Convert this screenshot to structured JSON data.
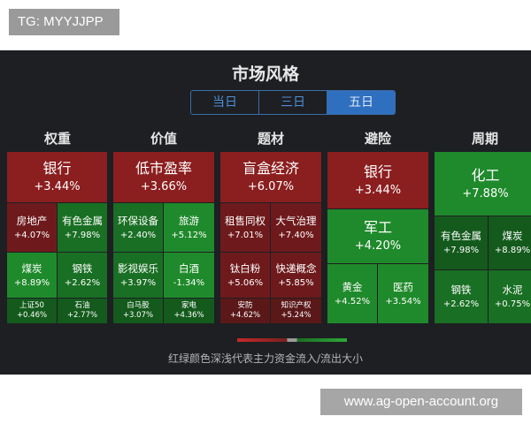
{
  "watermark_top": "TG: MYYJJPP",
  "watermark_bottom": "www.ag-open-account.org",
  "title": "市场风格",
  "tabs": [
    {
      "label": "当日",
      "active": false
    },
    {
      "label": "三日",
      "active": false
    },
    {
      "label": "五日",
      "active": true
    }
  ],
  "categories": [
    "权重",
    "价值",
    "题材",
    "避险",
    "周期"
  ],
  "columns": {
    "weight": {
      "big": {
        "name": "银行",
        "value": "+3.44%"
      },
      "cells": [
        {
          "name": "房地产",
          "value": "+4.07%"
        },
        {
          "name": "有色金属",
          "value": "+7.98%"
        },
        {
          "name": "煤炭",
          "value": "+8.89%"
        },
        {
          "name": "钢铁",
          "value": "+2.62%"
        },
        {
          "name": "上证50",
          "value": "+0.46%"
        },
        {
          "name": "石油",
          "value": "+2.77%"
        }
      ]
    },
    "value": {
      "big": {
        "name": "低市盈率",
        "value": "+3.66%"
      },
      "cells": [
        {
          "name": "环保设备",
          "value": "+2.40%"
        },
        {
          "name": "旅游",
          "value": "+5.12%"
        },
        {
          "name": "影视娱乐",
          "value": "+3.97%"
        },
        {
          "name": "白酒",
          "value": "-1.34%"
        },
        {
          "name": "白马股",
          "value": "+3.07%"
        },
        {
          "name": "家电",
          "value": "+4.36%"
        }
      ]
    },
    "theme": {
      "big": {
        "name": "盲盒经济",
        "value": "+6.07%"
      },
      "cells": [
        {
          "name": "租售同权",
          "value": "+7.01%"
        },
        {
          "name": "大气治理",
          "value": "+7.40%"
        },
        {
          "name": "钛白粉",
          "value": "+5.06%"
        },
        {
          "name": "快递概念",
          "value": "+5.85%"
        },
        {
          "name": "安防",
          "value": "+4.62%"
        },
        {
          "name": "知识产权",
          "value": "+5.24%"
        }
      ]
    },
    "safe": {
      "big": {
        "name": "银行",
        "value": "+3.44%"
      },
      "mid": {
        "name": "军工",
        "value": "+4.20%"
      },
      "cells": [
        {
          "name": "黄金",
          "value": "+4.52%"
        },
        {
          "name": "医药",
          "value": "+3.54%"
        }
      ]
    },
    "cycle": {
      "big": {
        "name": "化工",
        "value": "+7.88%"
      },
      "cells": [
        {
          "name": "有色金属",
          "value": "+7.98%"
        },
        {
          "name": "煤炭",
          "value": "+8.89%"
        },
        {
          "name": "钢铁",
          "value": "+2.62%"
        },
        {
          "name": "水泥",
          "value": "+0.75%"
        }
      ]
    }
  },
  "legend_text": "红绿颜色深浅代表主力资金流入/流出大小",
  "colors": {
    "up": "#8b1e1f",
    "down": "#1f8a2b",
    "accent": "#2f6fbf"
  }
}
